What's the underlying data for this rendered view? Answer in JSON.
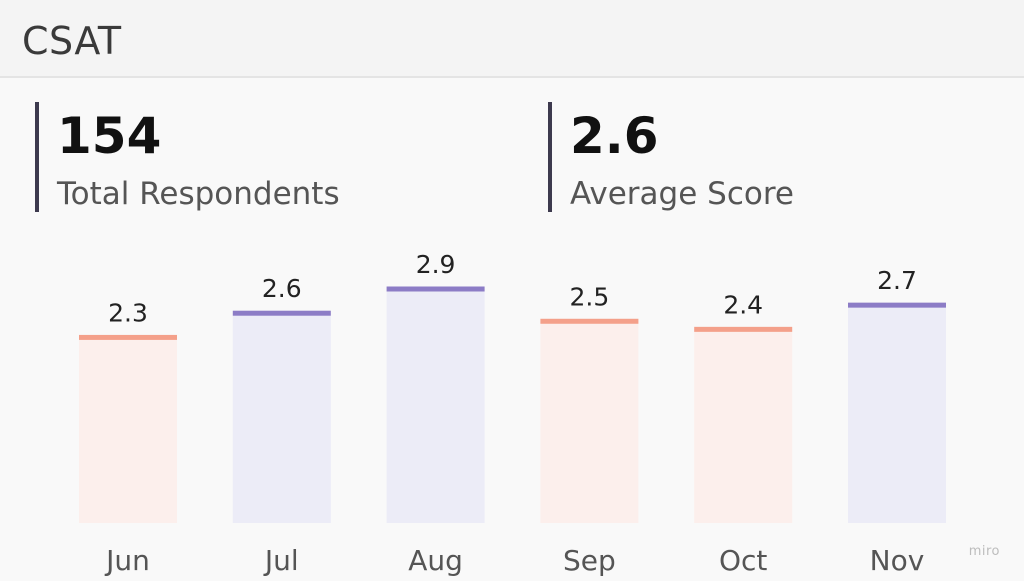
{
  "header": {
    "title": "CSAT"
  },
  "kpis": [
    {
      "value": "154",
      "label": "Total Respondents"
    },
    {
      "value": "2.6",
      "label": "Average Score"
    }
  ],
  "colors": {
    "below_avg_line": "#f4a08a",
    "below_avg_fill": "#fcefec",
    "above_avg_line": "#8c7cc6",
    "above_avg_fill": "#ececf7"
  },
  "chart_data": {
    "type": "bar",
    "categories": [
      "Jun",
      "Jul",
      "Aug",
      "Sep",
      "Oct",
      "Nov"
    ],
    "values": [
      2.3,
      2.6,
      2.9,
      2.5,
      2.4,
      2.7
    ],
    "data_labels": [
      "2.3",
      "2.6",
      "2.9",
      "2.5",
      "2.4",
      "2.7"
    ],
    "color_group": [
      "below",
      "above",
      "above",
      "below",
      "below",
      "above"
    ],
    "ylim": [
      0,
      2.9
    ],
    "grid": false,
    "legend": "none"
  },
  "watermark": "miro"
}
